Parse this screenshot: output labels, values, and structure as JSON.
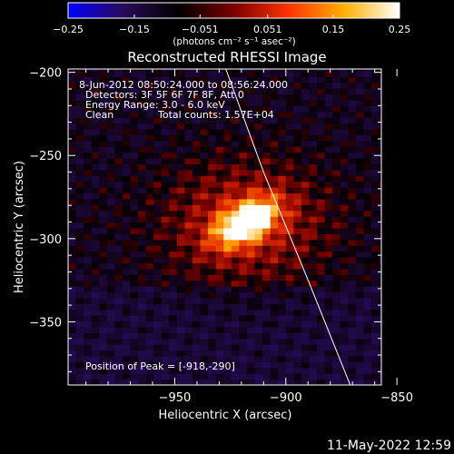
{
  "chart_data": {
    "type": "heatmap",
    "title": "Reconstructed RHESSI Image",
    "xlabel": "Heliocentric X (arcsec)",
    "ylabel": "Heliocentric Y (arcsec)",
    "xlim": [
      -998,
      -857
    ],
    "ylim": [
      -388,
      -198
    ],
    "x_ticks": [
      -950,
      -900,
      -850
    ],
    "x_tick_labels": [
      "−950",
      "−900",
      "−850"
    ],
    "y_ticks": [
      -200,
      -250,
      -300,
      -350
    ],
    "y_tick_labels": [
      "−200",
      "−250",
      "−300",
      "−350"
    ],
    "colorbar": {
      "range": [
        -0.25,
        0.25
      ],
      "ticks": [
        -0.25,
        -0.15,
        -0.051,
        0.051,
        0.15,
        0.25
      ],
      "tick_labels": [
        "−0.25",
        "−0.15",
        "−0.051",
        "0.051",
        "0.15",
        "0.25"
      ],
      "unit_label": "(photons cm⁻² s⁻¹ asec⁻²)",
      "colors": [
        "#0000ff",
        "#2a0a5a",
        "#000000",
        "#7a0000",
        "#ff3300",
        "#ffb000",
        "#ffffff"
      ]
    },
    "source": {
      "peak_x": -918,
      "peak_y": -290,
      "peak_value": 0.25,
      "sigma_major": 12,
      "sigma_minor": 7,
      "angle_deg": 45,
      "halo_value": 0.12,
      "halo_sigma": 26
    },
    "limb_line": [
      [
        -927,
        -198
      ],
      [
        -910,
        -260
      ],
      [
        -890,
        -325
      ],
      [
        -871,
        -388
      ]
    ],
    "info": {
      "line1": "8-Jun-2012 08:50:24.000 to 08:56:24.000",
      "line2": "Detectors: 3F 5F 6F 7F 8F, Att 0",
      "line3": "Energy Range: 3.0 - 6.0 keV",
      "line4_left": "Clean",
      "line4_right": "Total counts: 1.57E+04",
      "peak_label": "Position of Peak = [-918,-290]"
    }
  },
  "footer": {
    "timestamp": "11-May-2022 12:59"
  }
}
